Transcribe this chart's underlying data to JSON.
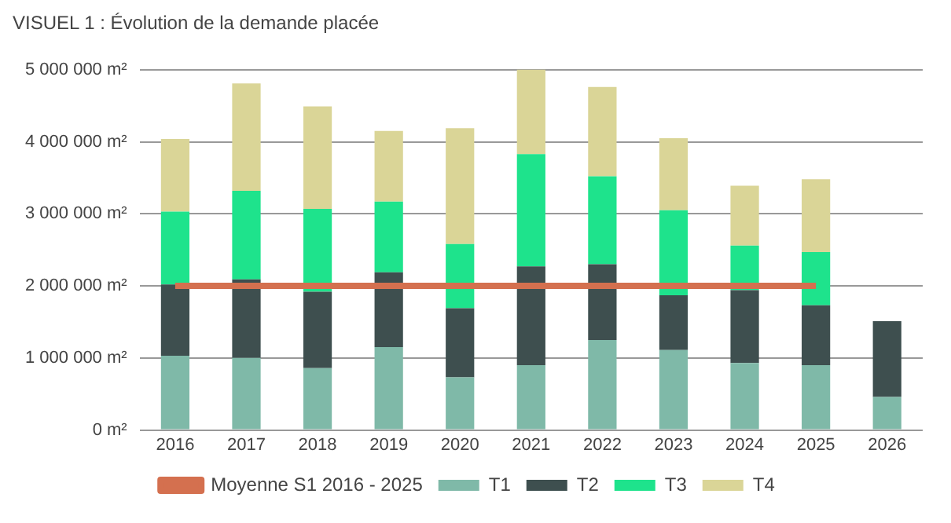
{
  "chart_data": {
    "type": "bar",
    "title": "VISUEL 1 : Évolution de la demande placée",
    "stacked": true,
    "categories": [
      "2016",
      "2017",
      "2018",
      "2019",
      "2020",
      "2021",
      "2022",
      "2023",
      "2024",
      "2025",
      "2026"
    ],
    "series": [
      {
        "name": "T1",
        "color": "#7fb9a8",
        "values": [
          1030000,
          1000000,
          860000,
          1150000,
          730000,
          900000,
          1250000,
          1110000,
          930000,
          900000,
          460000
        ]
      },
      {
        "name": "T2",
        "color": "#3e4f4f",
        "values": [
          990000,
          1090000,
          1060000,
          1040000,
          960000,
          1370000,
          1050000,
          760000,
          1010000,
          830000,
          1050000
        ]
      },
      {
        "name": "T3",
        "color": "#1ee38c",
        "values": [
          1010000,
          1230000,
          1150000,
          980000,
          890000,
          1560000,
          1220000,
          1180000,
          620000,
          740000,
          null
        ]
      },
      {
        "name": "T4",
        "color": "#dad597",
        "values": [
          1010000,
          1490000,
          1420000,
          980000,
          1610000,
          1190000,
          1240000,
          1000000,
          830000,
          1010000,
          null
        ]
      },
      {
        "name": "Moyenne S1 2016 - 2025",
        "type": "line",
        "color": "#d4704f",
        "values": [
          2000000,
          2000000,
          2000000,
          2000000,
          2000000,
          2000000,
          2000000,
          2000000,
          2000000,
          2000000,
          null
        ]
      }
    ],
    "ylim": [
      0,
      5000000
    ],
    "yticks": [
      {
        "value": 0,
        "label": "0 m²"
      },
      {
        "value": 1000000,
        "label": "1 000 000 m²"
      },
      {
        "value": 2000000,
        "label": "2 000 000 m²"
      },
      {
        "value": 3000000,
        "label": "3 000 000 m²"
      },
      {
        "value": 4000000,
        "label": "4 000 000 m²"
      },
      {
        "value": 5000000,
        "label": "5 000 000 m²"
      }
    ],
    "grid": "y",
    "legend": "bottom"
  }
}
